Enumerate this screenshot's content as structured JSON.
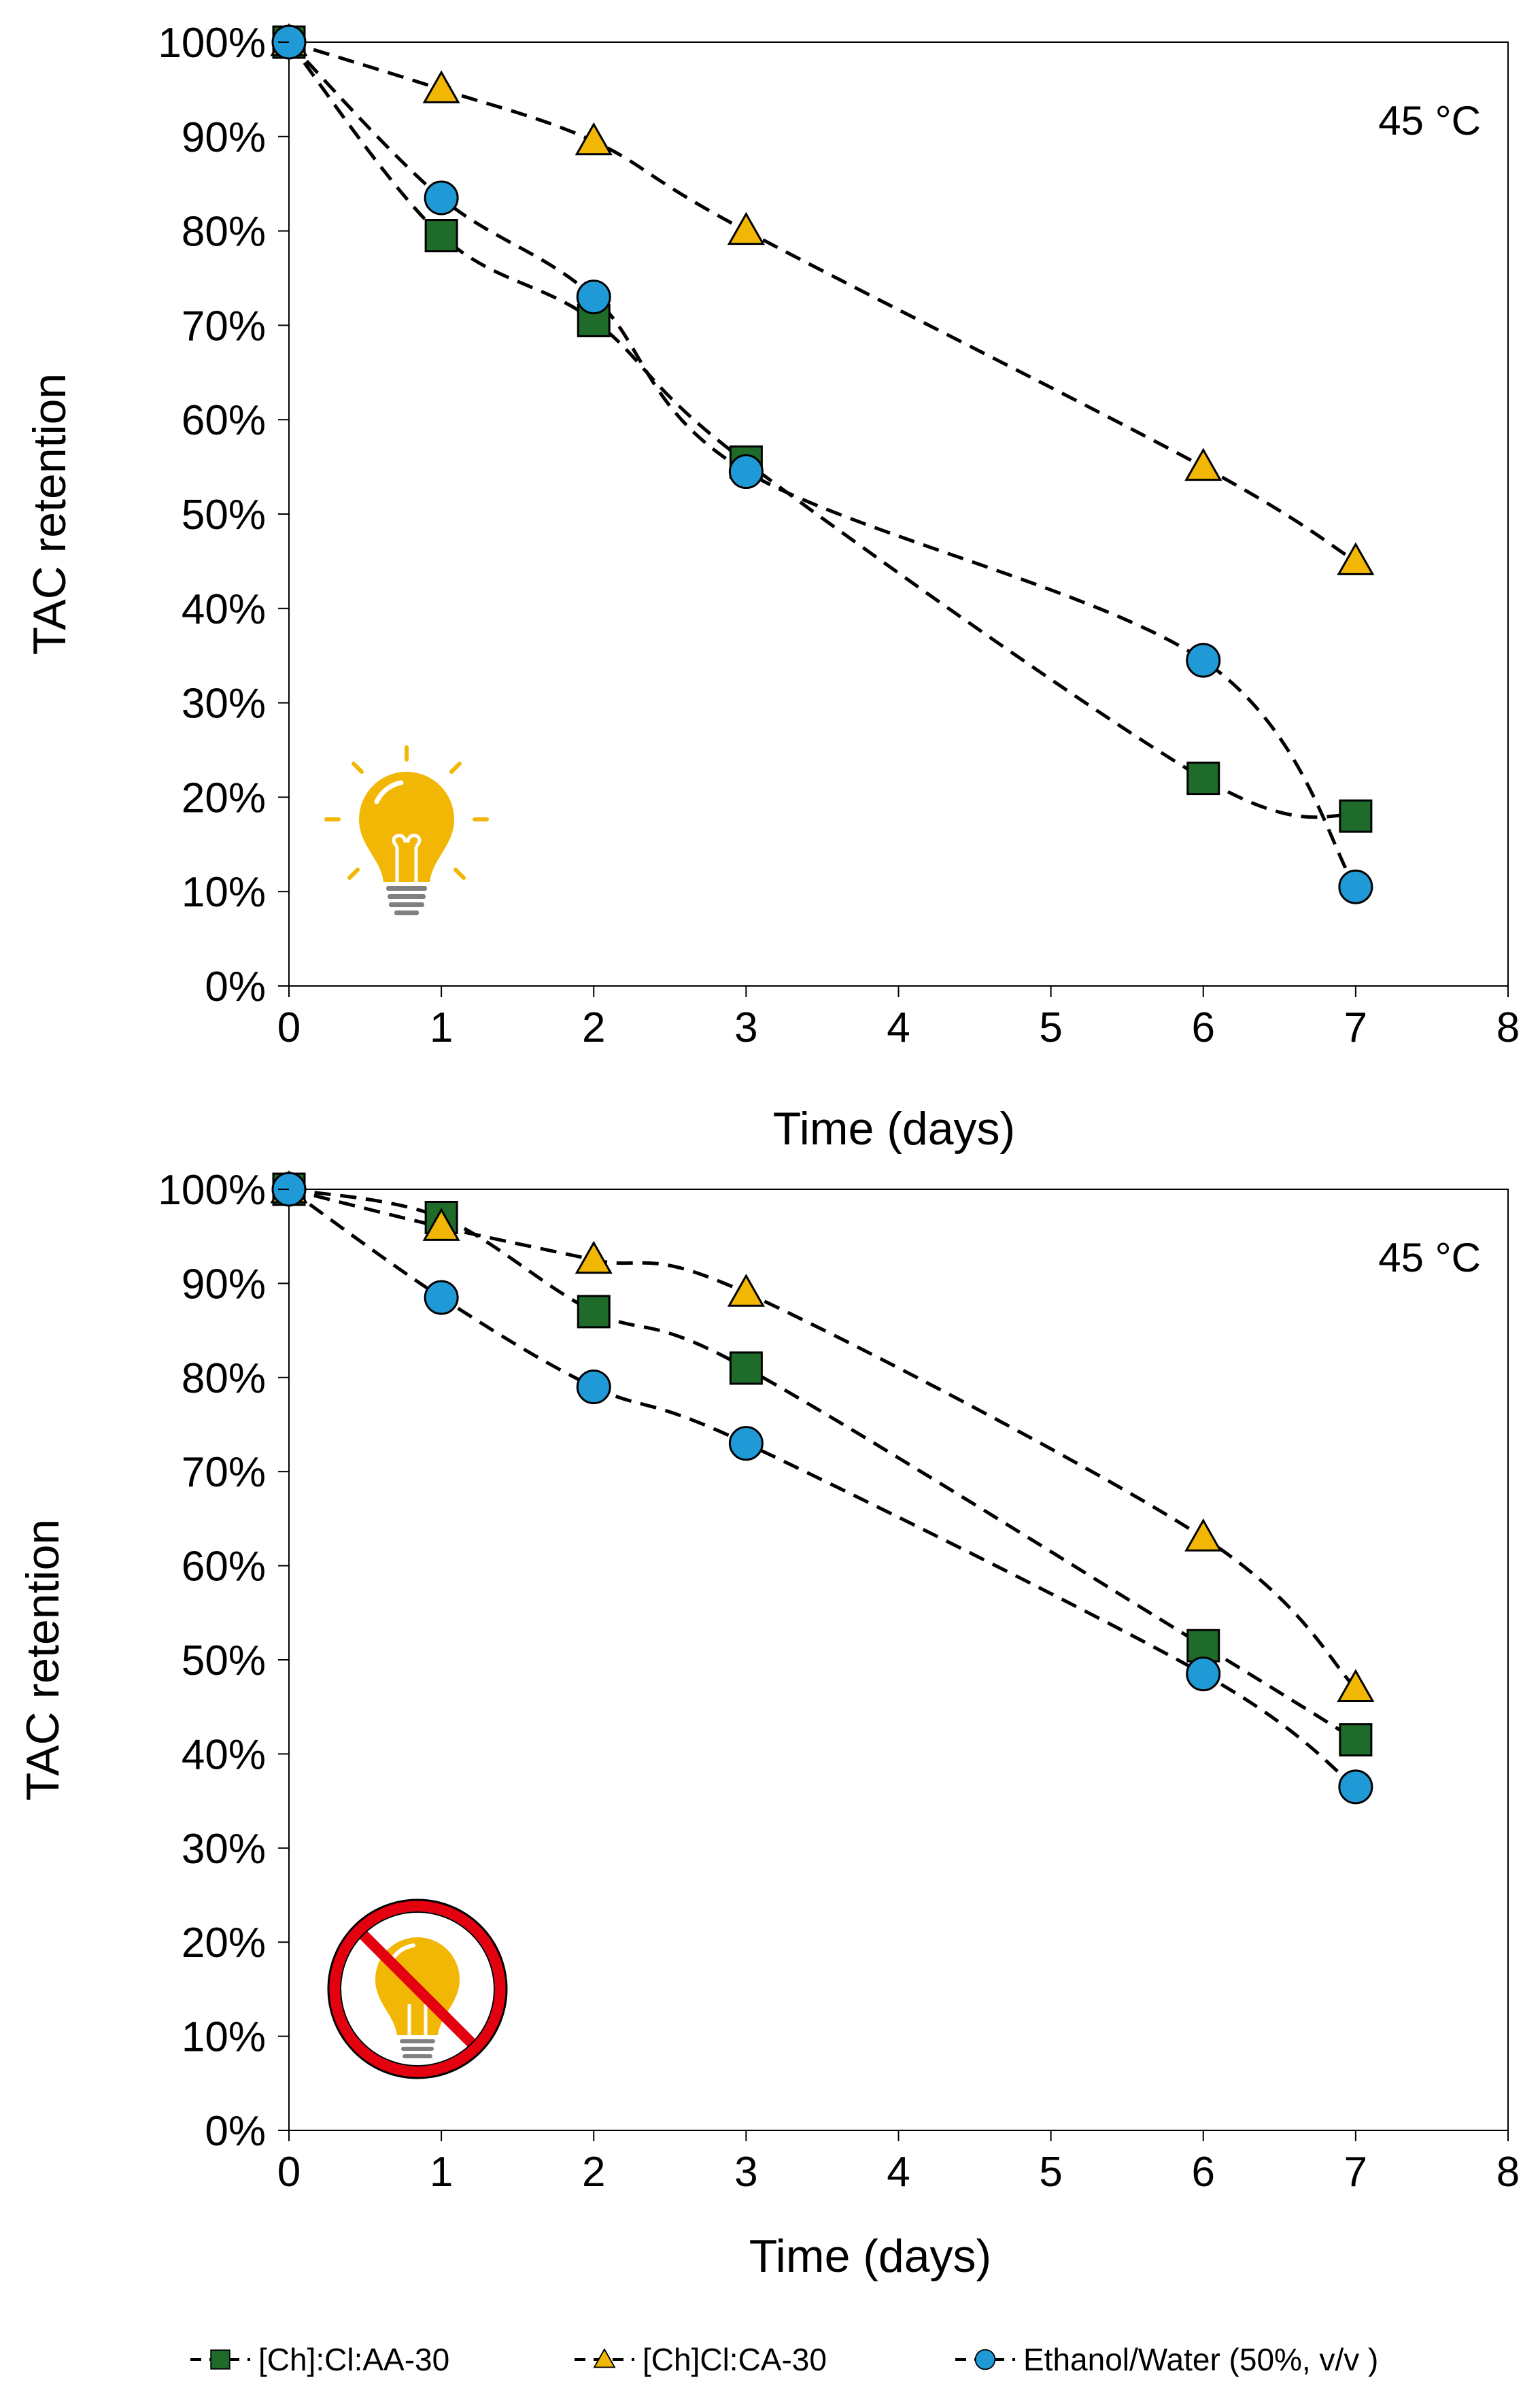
{
  "chart_data": [
    {
      "type": "line",
      "panel_label": "45 °C",
      "condition_icon": "lightbulb-on-icon",
      "xlabel": "Time (days)",
      "ylabel": "TAC  retention",
      "xlim": [
        0,
        8
      ],
      "ylim": [
        0,
        100
      ],
      "x_ticks": [
        "0",
        "1",
        "2",
        "3",
        "4",
        "5",
        "6",
        "7",
        "8"
      ],
      "y_ticks": [
        "0%",
        "10%",
        "20%",
        "30%",
        "40%",
        "50%",
        "60%",
        "70%",
        "80%",
        "90%",
        "100%"
      ],
      "x": [
        0,
        1,
        2,
        3,
        6,
        7
      ],
      "line_style": "dashed smoothed",
      "grid": false,
      "series": [
        {
          "name": "[Ch]:Cl:AA-30",
          "marker": "square",
          "color": "#1e6b2a",
          "values": [
            100,
            79.5,
            70.5,
            55.5,
            22,
            18
          ]
        },
        {
          "name": "[Ch]Cl:CA-30",
          "marker": "triangle",
          "color": "#f2b705",
          "values": [
            100,
            95,
            89.5,
            80,
            55,
            45
          ]
        },
        {
          "name": "Ethanol/Water (50%, v/v )",
          "marker": "circle",
          "color": "#1f9ad6",
          "values": [
            100,
            83.5,
            73,
            54.5,
            34.5,
            10.5
          ]
        }
      ]
    },
    {
      "type": "line",
      "panel_label": "45 °C",
      "condition_icon": "no-light-icon",
      "xlabel": "Time (days)",
      "ylabel": "TAC  retention",
      "xlim": [
        0,
        8
      ],
      "ylim": [
        0,
        100
      ],
      "x_ticks": [
        "0",
        "1",
        "2",
        "3",
        "4",
        "5",
        "6",
        "7",
        "8"
      ],
      "y_ticks": [
        "0%",
        "10%",
        "20%",
        "30%",
        "40%",
        "50%",
        "60%",
        "70%",
        "80%",
        "90%",
        "100%"
      ],
      "x": [
        0,
        1,
        2,
        3,
        6,
        7
      ],
      "line_style": "dashed smoothed",
      "grid": false,
      "series": [
        {
          "name": "[Ch]:Cl:AA-30",
          "marker": "square",
          "color": "#1e6b2a",
          "values": [
            100,
            97,
            87,
            81,
            51.5,
            41.5
          ]
        },
        {
          "name": "[Ch]Cl:CA-30",
          "marker": "triangle",
          "color": "#f2b705",
          "values": [
            100,
            96,
            92.5,
            89,
            63,
            47
          ]
        },
        {
          "name": "Ethanol/Water (50%, v/v )",
          "marker": "circle",
          "color": "#1f9ad6",
          "values": [
            100,
            88.5,
            79,
            73,
            48.5,
            36.5
          ]
        }
      ]
    }
  ],
  "legend": {
    "placement": "bottom",
    "items": [
      {
        "label": "[Ch]:Cl:AA-30",
        "marker": "square",
        "color": "#1e6b2a"
      },
      {
        "label": "[Ch]Cl:CA-30",
        "marker": "triangle",
        "color": "#f2b705"
      },
      {
        "label": "Ethanol/Water (50%, v/v )",
        "marker": "circle",
        "color": "#1f9ad6"
      }
    ]
  }
}
